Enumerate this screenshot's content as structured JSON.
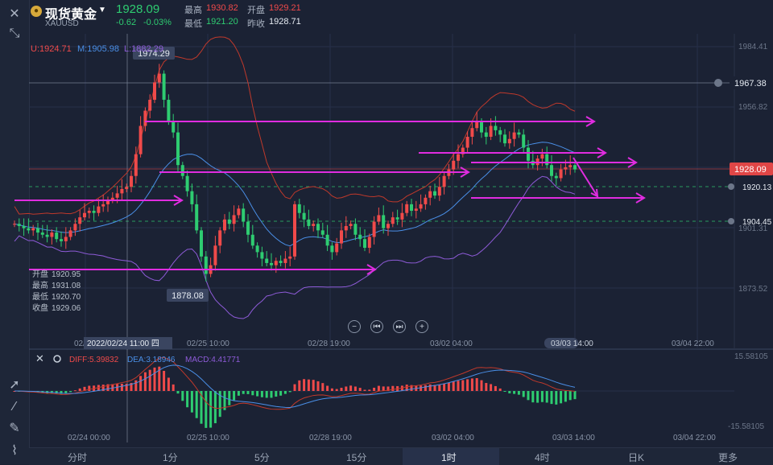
{
  "header": {
    "title": "现货黄金",
    "symbol": "XAUUSD",
    "price": "1928.09",
    "change": "-0.62",
    "change_pct": "-0.03%",
    "high_label": "最高",
    "high": "1930.82",
    "low_label": "最低",
    "low": "1921.20",
    "open_label": "开盘",
    "open": "1929.21",
    "prev_close_label": "昨收",
    "prev_close": "1928.71"
  },
  "indicators": {
    "boll_u": "U:1924.71",
    "boll_m": "M:1905.98",
    "boll_l": "L:1882.29",
    "macd_diff": "DIFF:5.39832",
    "macd_dea": "DEA:3.18946",
    "macd_val": "MACD:4.41771"
  },
  "price_axis": {
    "ticks": [
      "1984.41",
      "1956.82",
      "1901.31",
      "1873.52"
    ],
    "alert_1": "1967.38",
    "current": "1928.09",
    "alert_2": "1920.13",
    "alert_3": "1904.45"
  },
  "annotations": {
    "peak": "1974.29",
    "trough": "1878.08",
    "crosshair_time": "2022/02/24 11:00 四",
    "hover_time": "03/03 14:00"
  },
  "ohlc_box": {
    "open_label": "开盘",
    "open": "1920.95",
    "high_label": "最高",
    "high": "1931.08",
    "low_label": "最低",
    "low": "1920.70",
    "close_label": "收盘",
    "close": "1929.06"
  },
  "time_axis": {
    "main_ticks": [
      "02/2",
      "02/25 10:00",
      "02/28 19:00",
      "03/02 04:00",
      "03/04 22:00"
    ],
    "sub_ticks": [
      "02/24 00:00",
      "02/25 10:00",
      "02/28 19:00",
      "03/02 04:00",
      "03/03 14:00",
      "03/04 22:00"
    ]
  },
  "macd_axis": {
    "top": "15.58105",
    "bottom": "-15.58105"
  },
  "timeframes": [
    "分时",
    "1分",
    "5分",
    "15分",
    "1时",
    "4时",
    "日K",
    "更多"
  ],
  "active_timeframe": "1时",
  "colors": {
    "up": "#f04a4a",
    "down": "#2ecc71",
    "boll_upper": "#c0392b",
    "boll_mid": "#4a8fe7",
    "boll_lower": "#8e5bd8",
    "arrow": "#e02ce0",
    "background": "#1b2234"
  },
  "chart_data": {
    "type": "candlestick",
    "interval": "1时",
    "bollinger": {
      "upper": 1924.71,
      "mid": 1905.98,
      "lower": 1882.29
    },
    "candles_summary": [
      {
        "label": "02/24",
        "open": 1905,
        "high": 1974.29,
        "low": 1895,
        "close": 1940
      },
      {
        "label": "02/25",
        "open": 1915,
        "high": 1925,
        "low": 1878.08,
        "close": 1890
      },
      {
        "label": "02/28",
        "open": 1890,
        "high": 1915,
        "low": 1885,
        "close": 1910
      },
      {
        "label": "03/02",
        "open": 1912,
        "high": 1950,
        "low": 1905,
        "close": 1935
      },
      {
        "label": "03/03",
        "open": 1929.21,
        "high": 1930.82,
        "low": 1921.2,
        "close": 1928.09
      }
    ],
    "macd": {
      "diff": 5.39832,
      "dea": 3.18946,
      "macd": 4.41771
    }
  }
}
